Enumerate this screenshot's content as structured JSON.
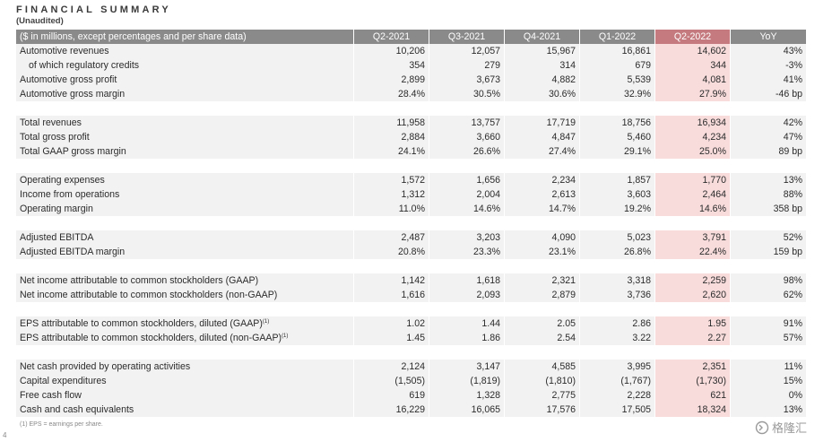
{
  "title": "FINANCIAL SUMMARY",
  "subtitle": "(Unaudited)",
  "header": {
    "label": "($ in millions, except percentages and per share data)",
    "cols": [
      "Q2-2021",
      "Q3-2021",
      "Q4-2021",
      "Q1-2022",
      "Q2-2022",
      "YoY"
    ]
  },
  "groups": [
    [
      {
        "label": "Automotive revenues",
        "values": [
          "10,206",
          "12,057",
          "15,967",
          "16,861",
          "14,602",
          "43%"
        ]
      },
      {
        "label": "of which regulatory credits",
        "indent": true,
        "values": [
          "354",
          "279",
          "314",
          "679",
          "344",
          "-3%"
        ]
      },
      {
        "label": "Automotive gross profit",
        "values": [
          "2,899",
          "3,673",
          "4,882",
          "5,539",
          "4,081",
          "41%"
        ]
      },
      {
        "label": "Automotive gross margin",
        "values": [
          "28.4%",
          "30.5%",
          "30.6%",
          "32.9%",
          "27.9%",
          "-46 bp"
        ]
      }
    ],
    [
      {
        "label": "Total revenues",
        "values": [
          "11,958",
          "13,757",
          "17,719",
          "18,756",
          "16,934",
          "42%"
        ]
      },
      {
        "label": "Total gross profit",
        "values": [
          "2,884",
          "3,660",
          "4,847",
          "5,460",
          "4,234",
          "47%"
        ]
      },
      {
        "label": "Total GAAP gross margin",
        "values": [
          "24.1%",
          "26.6%",
          "27.4%",
          "29.1%",
          "25.0%",
          "89 bp"
        ]
      }
    ],
    [
      {
        "label": "Operating expenses",
        "values": [
          "1,572",
          "1,656",
          "2,234",
          "1,857",
          "1,770",
          "13%"
        ]
      },
      {
        "label": "Income from operations",
        "values": [
          "1,312",
          "2,004",
          "2,613",
          "3,603",
          "2,464",
          "88%"
        ]
      },
      {
        "label": "Operating margin",
        "values": [
          "11.0%",
          "14.6%",
          "14.7%",
          "19.2%",
          "14.6%",
          "358 bp"
        ]
      }
    ],
    [
      {
        "label": "Adjusted EBITDA",
        "values": [
          "2,487",
          "3,203",
          "4,090",
          "5,023",
          "3,791",
          "52%"
        ]
      },
      {
        "label": "Adjusted EBITDA margin",
        "values": [
          "20.8%",
          "23.3%",
          "23.1%",
          "26.8%",
          "22.4%",
          "159 bp"
        ]
      }
    ],
    [
      {
        "label": "Net income attributable to common stockholders (GAAP)",
        "values": [
          "1,142",
          "1,618",
          "2,321",
          "3,318",
          "2,259",
          "98%"
        ]
      },
      {
        "label": "Net income attributable to common stockholders (non-GAAP)",
        "values": [
          "1,616",
          "2,093",
          "2,879",
          "3,736",
          "2,620",
          "62%"
        ]
      }
    ],
    [
      {
        "label": "EPS attributable to common stockholders, diluted (GAAP)",
        "sup": "(1)",
        "values": [
          "1.02",
          "1.44",
          "2.05",
          "2.86",
          "1.95",
          "91%"
        ]
      },
      {
        "label": "EPS attributable to common stockholders, diluted (non-GAAP)",
        "sup": "(1)",
        "values": [
          "1.45",
          "1.86",
          "2.54",
          "3.22",
          "2.27",
          "57%"
        ]
      }
    ],
    [
      {
        "label": "Net cash provided by operating activities",
        "values": [
          "2,124",
          "3,147",
          "4,585",
          "3,995",
          "2,351",
          "11%"
        ]
      },
      {
        "label": "Capital expenditures",
        "values": [
          "(1,505)",
          "(1,819)",
          "(1,810)",
          "(1,767)",
          "(1,730)",
          "15%"
        ]
      },
      {
        "label": "Free cash flow",
        "values": [
          "619",
          "1,328",
          "2,775",
          "2,228",
          "621",
          "0%"
        ]
      },
      {
        "label": "Cash and cash equivalents",
        "values": [
          "16,229",
          "16,065",
          "17,576",
          "17,505",
          "18,324",
          "13%"
        ]
      }
    ]
  ],
  "footnote": "(1) EPS = earnings per share.",
  "page_number": "4",
  "watermark": "格隆汇",
  "colors": {
    "header_gray": "#8a8a8a",
    "highlight_header": "#c47a7e",
    "highlight_cell": "#f8dcdc",
    "row_bg": "#f2f2f2"
  }
}
